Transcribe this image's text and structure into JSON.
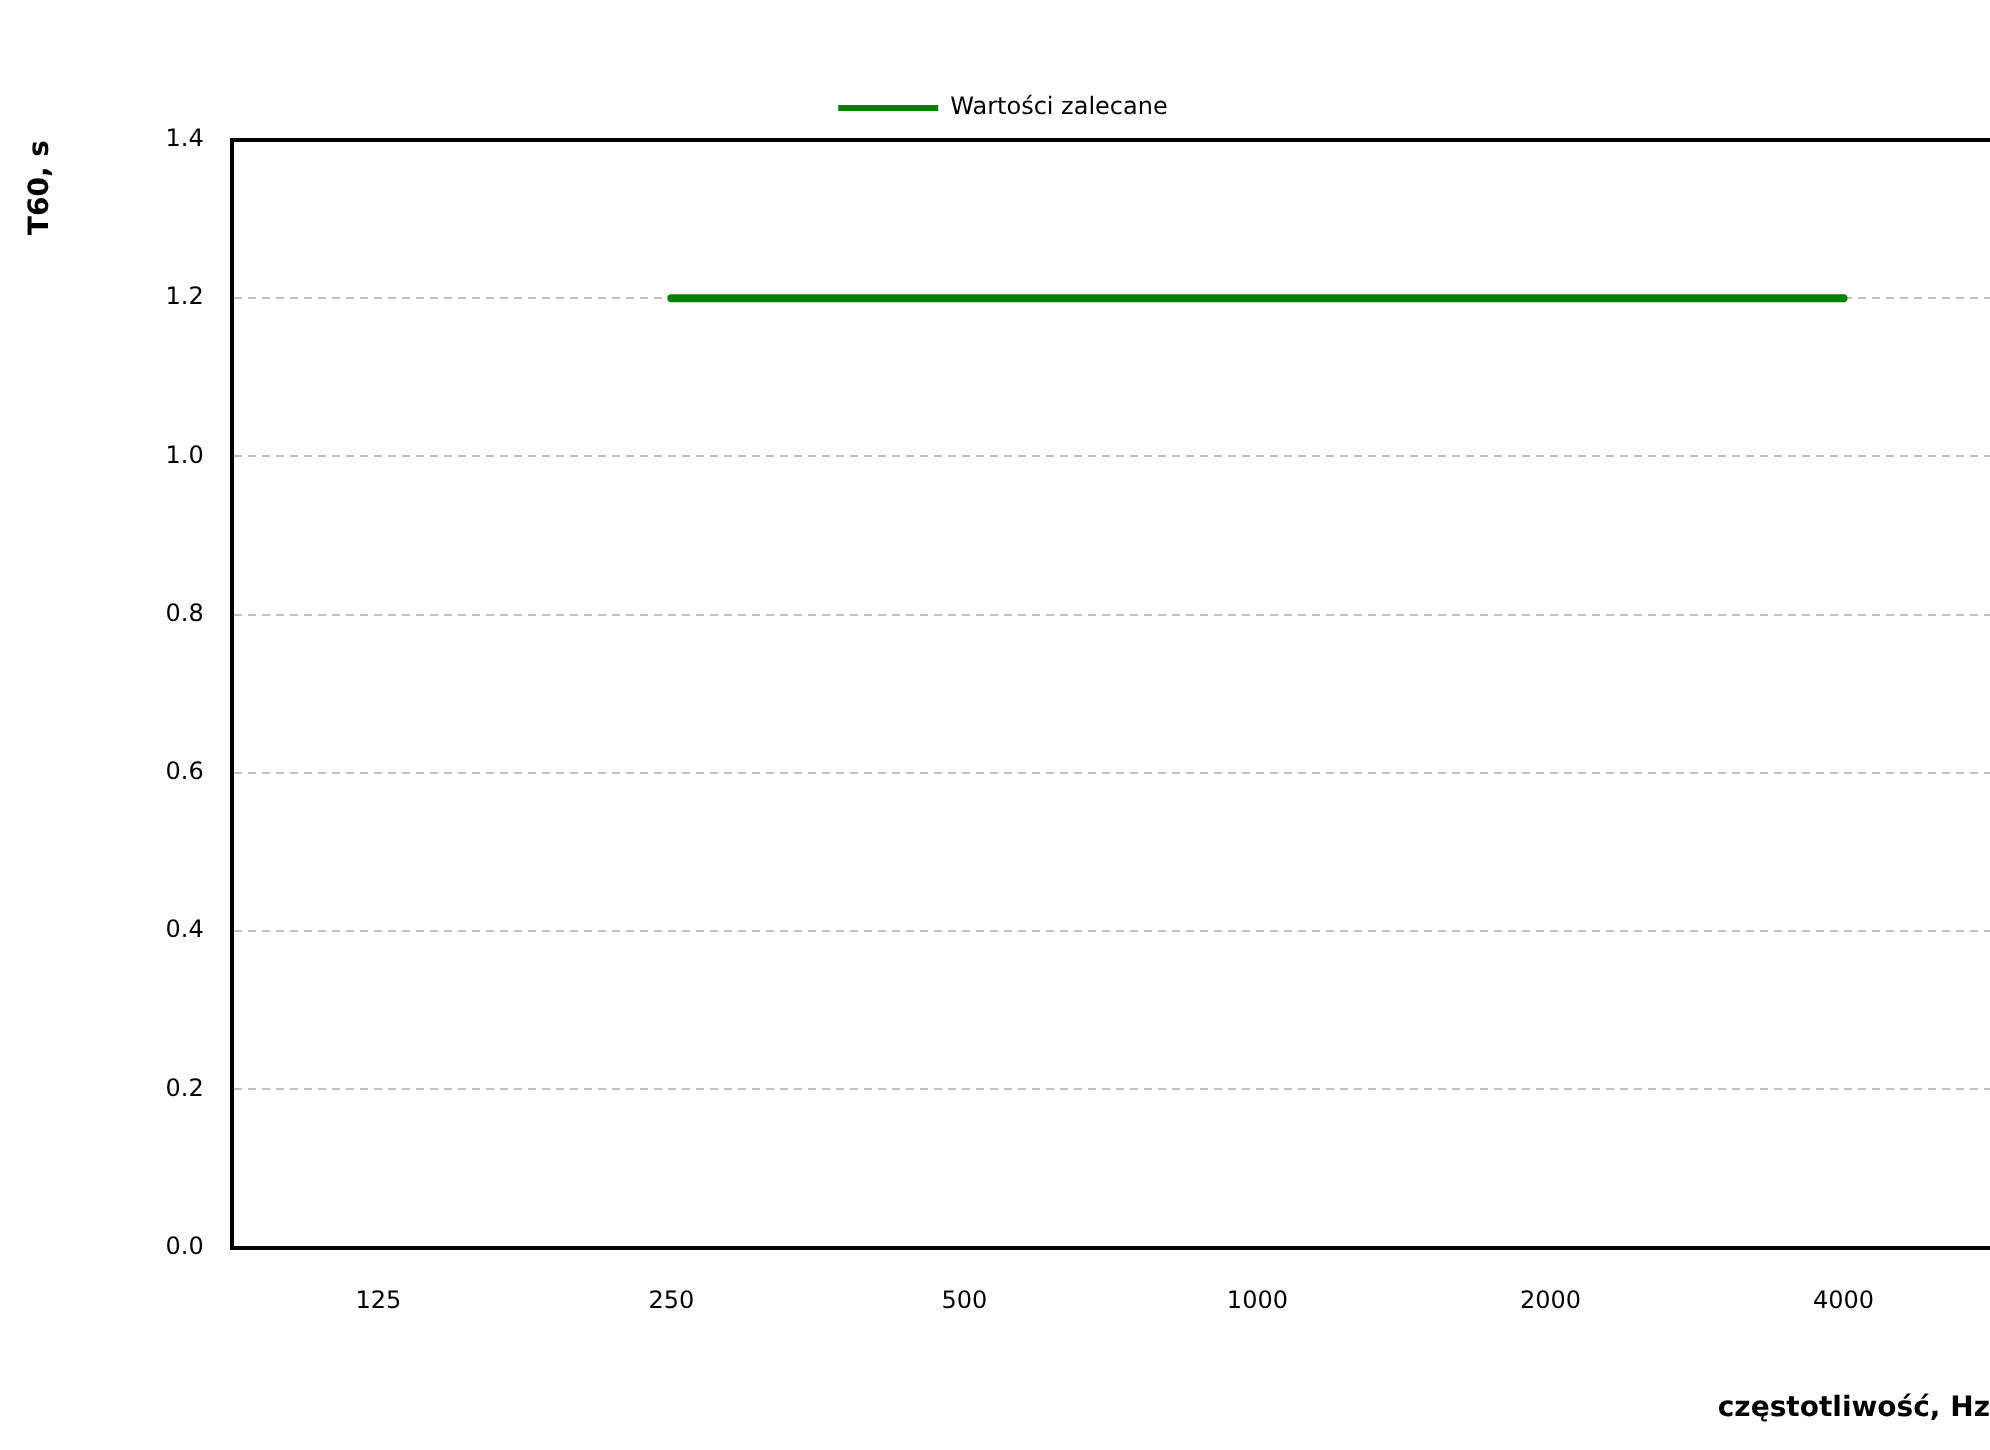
{
  "chart_data": {
    "type": "line",
    "xlabel": "częstotliwość, Hz",
    "ylabel": "T60, s",
    "categories": [
      "125",
      "250",
      "500",
      "1000",
      "2000",
      "4000"
    ],
    "series": [
      {
        "name": "Wartości zalecane",
        "color": "#008000",
        "values": [
          null,
          1.2,
          1.2,
          1.2,
          1.2,
          1.2
        ]
      }
    ],
    "ylim": [
      0,
      1.4
    ],
    "yticks": [
      {
        "value": 0,
        "label": "0.0"
      },
      {
        "value": 0.2,
        "label": "0.2"
      },
      {
        "value": 0.4,
        "label": "0.4"
      },
      {
        "value": 0.6,
        "label": "0.6"
      },
      {
        "value": 0.8,
        "label": "0.8"
      },
      {
        "value": 1,
        "label": "1.0"
      },
      {
        "value": 1.2,
        "label": "1.2"
      },
      {
        "value": 1.4,
        "label": "1.4"
      }
    ],
    "grid": "y",
    "legend": "top",
    "marker": "none",
    "line_style": "solid"
  }
}
